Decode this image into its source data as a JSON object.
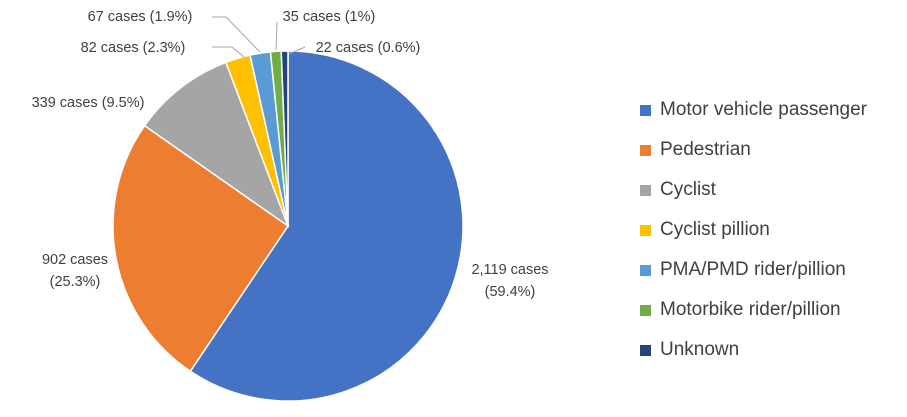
{
  "chart_data": {
    "type": "pie",
    "title": "",
    "unit": "cases",
    "start_angle_deg": 90,
    "direction": "clockwise",
    "legend_position": "right",
    "slices": [
      {
        "name": "Motor vehicle passenger",
        "value": 2119,
        "percent": 59.4,
        "color": "#4472C4",
        "label_lines": [
          "2,119 cases",
          "(59.4%)"
        ]
      },
      {
        "name": "Pedestrian",
        "value": 902,
        "percent": 25.3,
        "color": "#ED7D31",
        "label_lines": [
          "902 cases",
          "(25.3%)"
        ]
      },
      {
        "name": "Cyclist",
        "value": 339,
        "percent": 9.5,
        "color": "#A5A5A5",
        "label_lines": [
          "339 cases (9.5%)"
        ]
      },
      {
        "name": "Cyclist pillion",
        "value": 82,
        "percent": 2.3,
        "color": "#FFC000",
        "label_lines": [
          "82 cases (2.3%)"
        ]
      },
      {
        "name": "PMA/PMD rider/pillion",
        "value": 67,
        "percent": 1.9,
        "color": "#5B9BD5",
        "label_lines": [
          "67 cases (1.9%)"
        ]
      },
      {
        "name": "Motorbike rider/pillion",
        "value": 35,
        "percent": 1,
        "color": "#70AD47",
        "label_lines": [
          "35 cases (1%)"
        ]
      },
      {
        "name": "Unknown",
        "value": 22,
        "percent": 0.6,
        "color": "#264478",
        "label_lines": [
          "22 cases (0.6%)"
        ]
      }
    ]
  }
}
